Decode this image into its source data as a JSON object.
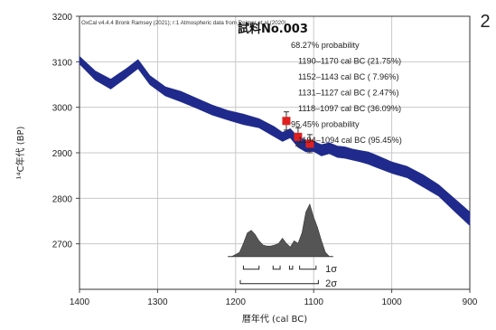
{
  "page_number": "2",
  "chart_data": {
    "type": "line",
    "credit": "OxCal v4.4.4 Bronk Ramsey (2021); r:1 Atmospheric data from Reimer et al (2020)",
    "sample": "試料No.003",
    "xlabel": "暦年代 (cal BC)",
    "ylabel": "¹⁴C年代 (BP)",
    "xlim": [
      1400,
      900
    ],
    "ylim": [
      2600,
      3200
    ],
    "x_ticks": [
      1400,
      1300,
      1200,
      1100,
      1000,
      900
    ],
    "y_ticks": [
      2700,
      2800,
      2900,
      3000,
      3100,
      3200
    ],
    "grid": true,
    "calibration_curve": {
      "color": "#1f2a8c",
      "x": [
        1400,
        1380,
        1360,
        1340,
        1325,
        1310,
        1290,
        1270,
        1250,
        1230,
        1210,
        1190,
        1170,
        1150,
        1140,
        1130,
        1120,
        1110,
        1100,
        1090,
        1080,
        1070,
        1060,
        1050,
        1040,
        1030,
        1020,
        1000,
        980,
        960,
        940,
        920,
        900
      ],
      "upper": [
        3112,
        3080,
        3062,
        3085,
        3105,
        3070,
        3045,
        3035,
        3020,
        3005,
        2993,
        2985,
        2975,
        2957,
        2945,
        2953,
        2935,
        2928,
        2925,
        2918,
        2922,
        2915,
        2913,
        2908,
        2905,
        2902,
        2895,
        2880,
        2870,
        2852,
        2830,
        2800,
        2770
      ],
      "lower": [
        3095,
        3060,
        3040,
        3065,
        3085,
        3050,
        3025,
        3012,
        2998,
        2983,
        2972,
        2962,
        2955,
        2935,
        2925,
        2933,
        2912,
        2902,
        2903,
        2893,
        2898,
        2890,
        2888,
        2884,
        2880,
        2875,
        2868,
        2855,
        2845,
        2825,
        2805,
        2772,
        2740
      ]
    },
    "dates": {
      "color": "#e02020",
      "points": [
        {
          "x": 1135,
          "y": 2970,
          "err": 20
        },
        {
          "x": 1120,
          "y": 2935,
          "err": 20
        },
        {
          "x": 1105,
          "y": 2920,
          "err": 20
        }
      ]
    },
    "probability_distribution": {
      "color": "#555555",
      "x": [
        1205,
        1195,
        1190,
        1185,
        1180,
        1175,
        1170,
        1165,
        1160,
        1155,
        1150,
        1145,
        1140,
        1135,
        1130,
        1125,
        1120,
        1115,
        1110,
        1105,
        1100,
        1095,
        1090,
        1085,
        1080
      ],
      "density": [
        0,
        0.08,
        0.25,
        0.45,
        0.5,
        0.42,
        0.3,
        0.22,
        0.2,
        0.2,
        0.22,
        0.25,
        0.35,
        0.25,
        0.18,
        0.3,
        0.25,
        0.45,
        0.85,
        1.0,
        0.75,
        0.55,
        0.3,
        0.08,
        0
      ]
    },
    "sigma_1_label": "1σ",
    "sigma_2_label": "2σ",
    "sigma_1_ranges": [
      [
        1190,
        1170
      ],
      [
        1152,
        1143
      ],
      [
        1131,
        1127
      ],
      [
        1118,
        1097
      ]
    ],
    "sigma_2_ranges": [
      [
        1194,
        1094
      ]
    ],
    "annotations": [
      "68.27% probability",
      "1190–1170 cal BC (21.75%)",
      "1152–1143 cal BC ( 7.96%)",
      "1131–1127 cal BC ( 2.47%)",
      "1118–1097 cal BC (36.09%)",
      "95.45% probability",
      "1194–1094 cal BC (95.45%)"
    ]
  }
}
